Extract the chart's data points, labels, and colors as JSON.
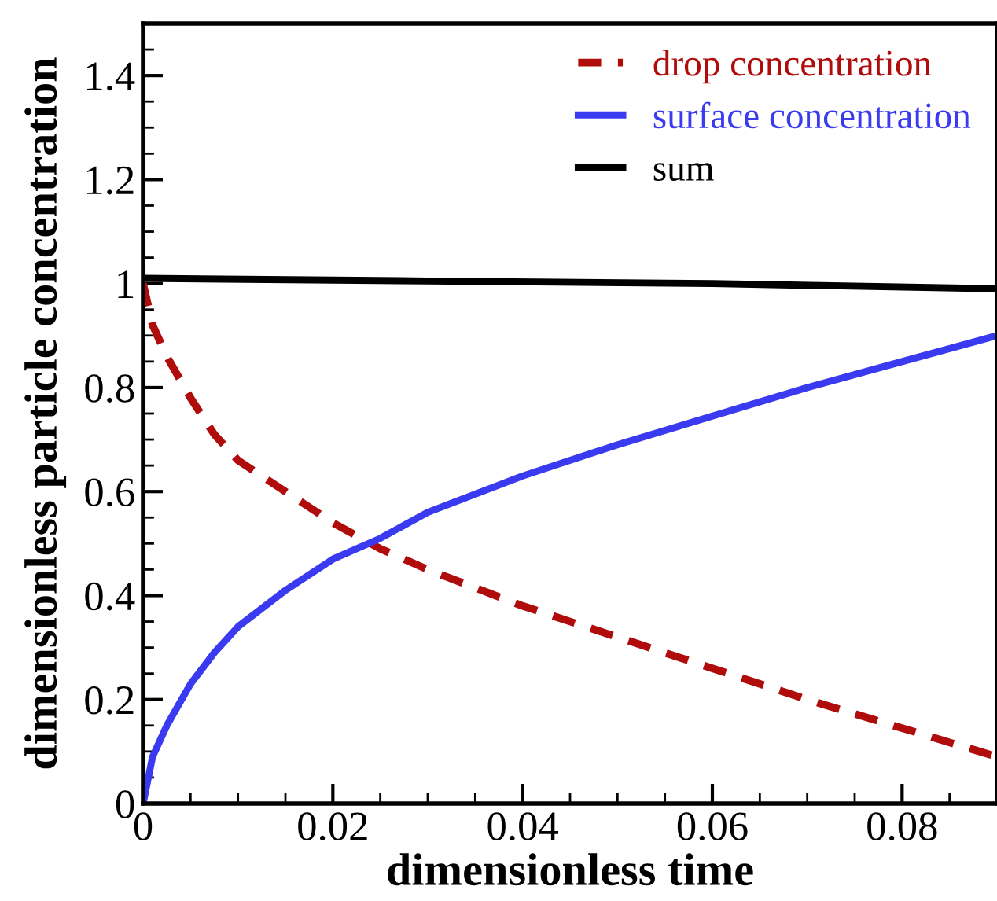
{
  "chart_data": {
    "type": "line",
    "xlabel": "dimensionless time",
    "ylabel": "dimensionless particle concentration",
    "xlim": [
      0,
      0.09
    ],
    "ylim": [
      0,
      1.5
    ],
    "xticks": [
      0,
      0.02,
      0.04,
      0.06,
      0.08
    ],
    "yticks": [
      0,
      0.2,
      0.4,
      0.6,
      0.8,
      1,
      1.2,
      1.4
    ],
    "grid": false,
    "legend": "top right",
    "series": [
      {
        "name": "drop concentration",
        "color": "#b00c0c",
        "line_style": "dashed",
        "x": [
          0,
          0.001,
          0.0025,
          0.005,
          0.0075,
          0.01,
          0.015,
          0.02,
          0.025,
          0.03,
          0.04,
          0.05,
          0.06,
          0.07,
          0.08,
          0.09
        ],
        "values": [
          1.0,
          0.92,
          0.86,
          0.78,
          0.71,
          0.66,
          0.6,
          0.54,
          0.49,
          0.45,
          0.38,
          0.32,
          0.26,
          0.2,
          0.145,
          0.09
        ]
      },
      {
        "name": "surface concentration",
        "color": "#3a3af0",
        "line_style": "solid",
        "x": [
          0,
          0.001,
          0.0025,
          0.005,
          0.0075,
          0.01,
          0.015,
          0.02,
          0.025,
          0.03,
          0.04,
          0.05,
          0.06,
          0.07,
          0.08,
          0.09
        ],
        "values": [
          0,
          0.09,
          0.15,
          0.23,
          0.29,
          0.34,
          0.41,
          0.47,
          0.51,
          0.56,
          0.63,
          0.69,
          0.745,
          0.8,
          0.85,
          0.9
        ]
      },
      {
        "name": "sum",
        "color": "#000000",
        "line_style": "solid",
        "x": [
          0,
          0.03,
          0.06,
          0.09
        ],
        "values": [
          1.01,
          1.005,
          1.0,
          0.99
        ]
      }
    ]
  }
}
